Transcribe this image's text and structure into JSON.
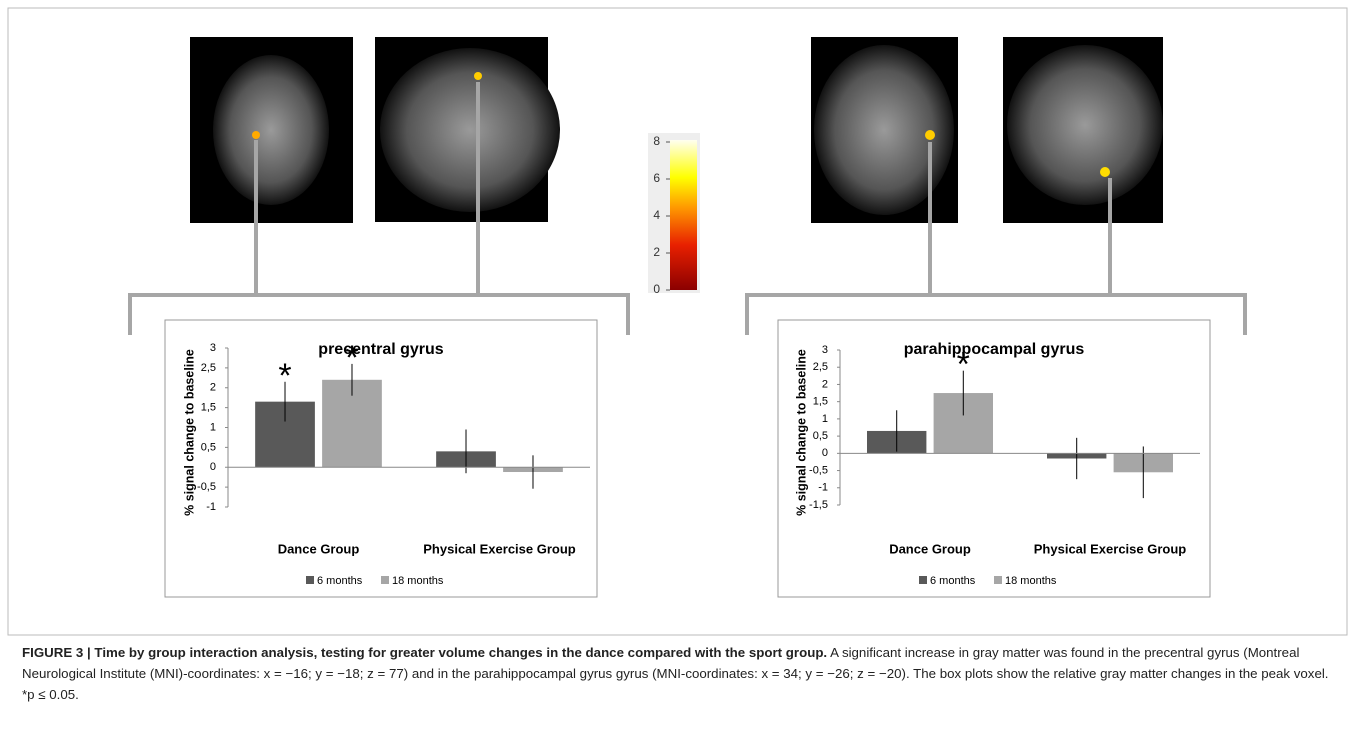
{
  "chart_data": [
    {
      "type": "bar",
      "title": "precentral gyrus",
      "ylabel": "% signal change to baseline",
      "categories": [
        "Dance Group",
        "Physical Exercise Group"
      ],
      "series": [
        {
          "name": "6 months",
          "color": "#595959",
          "values": [
            1.65,
            0.4
          ],
          "errors": [
            0.5,
            0.55
          ],
          "annotations": [
            "*",
            null
          ]
        },
        {
          "name": "18 months",
          "color": "#a6a6a6",
          "values": [
            2.2,
            -0.12
          ],
          "errors": [
            0.4,
            0.42
          ],
          "annotations": [
            "*",
            null
          ]
        }
      ],
      "ylim": [
        -1,
        3
      ],
      "yticks": [
        -1,
        {
          "value": -0.5,
          "label": "-0,5"
        },
        0,
        {
          "value": 0.5,
          "label": "0,5"
        },
        1,
        {
          "value": 1.5,
          "label": "1,5"
        },
        2,
        {
          "value": 2.5,
          "label": "2,5"
        },
        3
      ]
    },
    {
      "type": "bar",
      "title": "parahippocampal gyrus",
      "ylabel": "% signal change to baseline",
      "categories": [
        "Dance Group",
        "Physical Exercise Group"
      ],
      "series": [
        {
          "name": "6 months",
          "color": "#595959",
          "values": [
            0.65,
            -0.15
          ],
          "errors": [
            0.6,
            0.6
          ],
          "annotations": [
            null,
            null
          ]
        },
        {
          "name": "18 months",
          "color": "#a6a6a6",
          "values": [
            1.75,
            -0.55
          ],
          "errors": [
            0.65,
            0.75
          ],
          "annotations": [
            "*",
            null
          ]
        }
      ],
      "ylim": [
        -1.5,
        3
      ],
      "yticks": [
        {
          "value": -1.5,
          "label": "-1,5"
        },
        -1,
        {
          "value": -0.5,
          "label": "-0,5"
        },
        0,
        {
          "value": 0.5,
          "label": "0,5"
        },
        1,
        {
          "value": 1.5,
          "label": "1,5"
        },
        2,
        {
          "value": 2.5,
          "label": "2,5"
        },
        3
      ]
    }
  ],
  "colorbar": {
    "lim": [
      0,
      8
    ],
    "ticks": [
      0,
      2,
      4,
      6,
      8
    ]
  },
  "caption": {
    "label": "FIGURE 3 | Time by group interaction analysis, testing for greater volume changes in the dance compared with the sport group.",
    "text": "A significant increase in gray matter was found in the precentral gyrus (Montreal Neurological Institute (MNI)-coordinates: x = −16; y = −18; z = 77) and in the parahippocampal gyrus gyrus (MNI-coordinates: x = 34; y = −26; z = −20). The box plots show the relative gray matter changes in the peak voxel. *p ≤ 0.05."
  }
}
